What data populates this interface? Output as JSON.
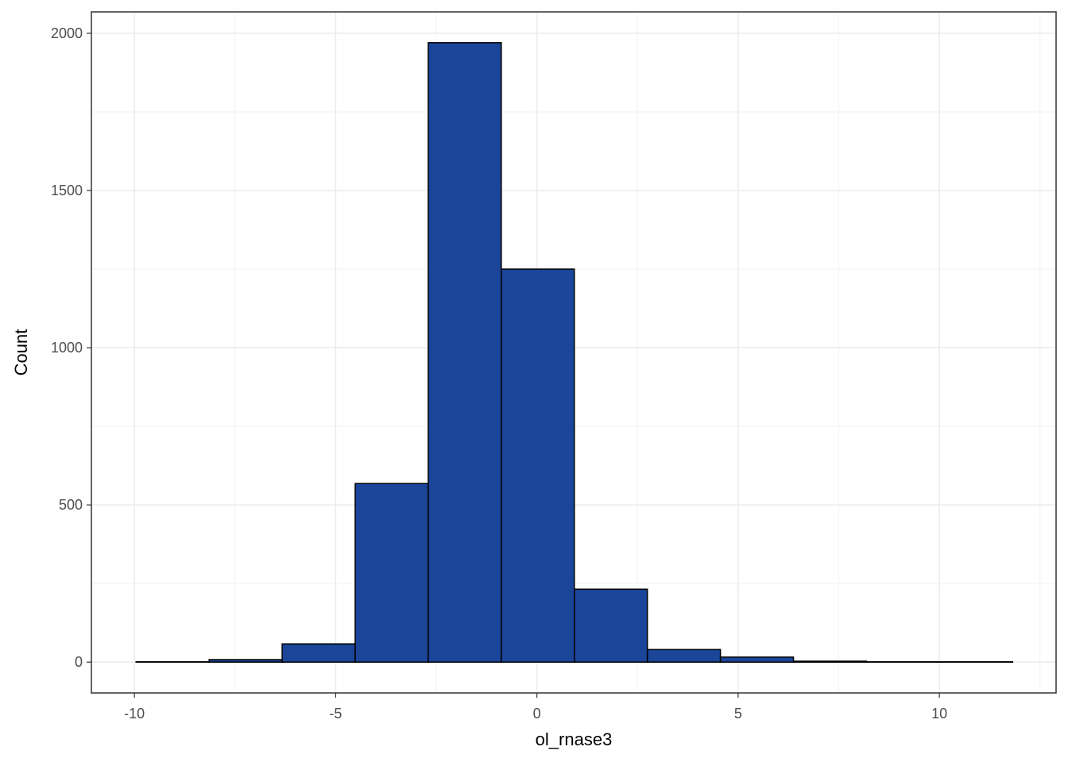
{
  "chart_data": {
    "type": "histogram",
    "x_label": "ol_rnase3",
    "y_label": "Count",
    "bins": [
      -9.96,
      -8.145,
      -6.33,
      -4.515,
      -2.7,
      -0.885,
      0.93,
      2.745,
      4.56,
      6.375,
      8.19,
      10.005,
      11.82
    ],
    "values": [
      1,
      8,
      58,
      568,
      1970,
      1250,
      232,
      40,
      16,
      3,
      1,
      1
    ],
    "color": "#1a4599",
    "edgecolor": "#000000",
    "xlim": [
      -11.07,
      12.9
    ],
    "ylim": [
      -98,
      2068
    ],
    "xticks": [
      -10,
      -5,
      0,
      5,
      10
    ],
    "yticks": [
      0,
      500,
      1000,
      1500,
      2000
    ],
    "grid": true
  }
}
